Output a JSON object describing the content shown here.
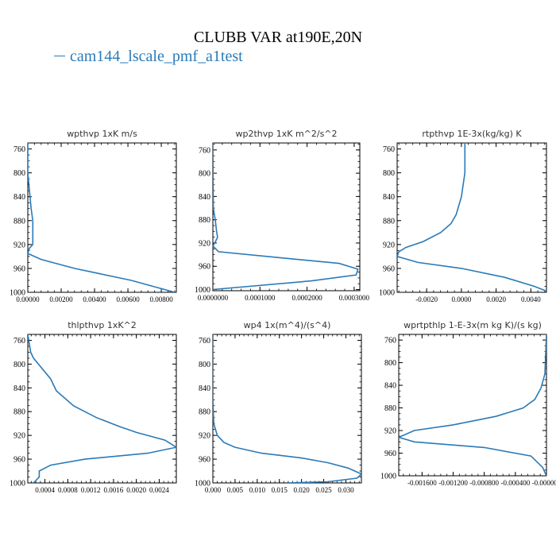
{
  "page": {
    "title": "CLUBB VAR at190E,20N",
    "legend": "cam144_lscale_pmf_a1test"
  },
  "colors": {
    "series": "#2a7ab8",
    "axes": "#000000"
  },
  "chart_data": [
    {
      "type": "line",
      "title": "wpthvp   1xK m/s",
      "xlim": [
        0,
        0.0089
      ],
      "ylim": [
        1000,
        750
      ],
      "ylabel": "",
      "xticks": [
        0,
        0.002,
        0.004,
        0.006,
        0.008
      ],
      "xticklabels": [
        "0.00000",
        "0.00200",
        "0.00400",
        "0.00600",
        "0.00800"
      ],
      "yticks": [
        760,
        800,
        840,
        880,
        920,
        960,
        1000
      ],
      "yticklabels": [
        "760",
        "800",
        "840",
        "880",
        "920",
        "960",
        "1000"
      ],
      "x": [
        0.0,
        0.0,
        0.0001,
        0.0002,
        0.0003,
        0.0003,
        0.0003,
        0.0003,
        0.0001,
        0.0,
        0.0008,
        0.0028,
        0.0062,
        0.0088
      ],
      "y": [
        750,
        800,
        830,
        860,
        880,
        900,
        912,
        920,
        926,
        935,
        945,
        960,
        980,
        1000
      ]
    },
    {
      "type": "line",
      "title": "wp2thvp   1xK m^2/s^2",
      "xlim": [
        0,
        0.000312
      ],
      "ylim": [
        1002,
        748
      ],
      "ylabel": "",
      "xticks": [
        0,
        0.0001,
        0.0002,
        0.0003
      ],
      "xticklabels": [
        "0.0000000",
        "0.0001000",
        "0.0002000",
        "0.0003000"
      ],
      "yticks": [
        760,
        800,
        840,
        880,
        920,
        960,
        1000
      ],
      "yticklabels": [
        "760",
        "800",
        "840",
        "880",
        "920",
        "960",
        "1000"
      ],
      "x": [
        0.0,
        5e-07,
        1e-06,
        5e-06,
        8e-06,
        1e-05,
        4e-06,
        0.0,
        1.2e-05,
        0.00014,
        0.000268,
        0.000308,
        0.000304,
        0.00021,
        0.0
      ],
      "y": [
        748,
        820,
        860,
        880,
        900,
        910,
        920,
        925,
        935,
        945,
        955,
        965,
        975,
        985,
        1000
      ]
    },
    {
      "type": "line",
      "title": "rtpthvp   1E-3x(kg/kg) K",
      "xlim": [
        -0.0037,
        0.0049
      ],
      "ylim": [
        1000,
        750
      ],
      "ylabel": "",
      "xticks": [
        -0.002,
        0.0,
        0.002,
        0.004
      ],
      "xticklabels": [
        "-0.0020",
        "0.0000",
        "0.0020",
        "0.0040"
      ],
      "yticks": [
        760,
        800,
        840,
        880,
        920,
        960,
        1000
      ],
      "yticklabels": [
        "760",
        "800",
        "840",
        "880",
        "920",
        "960",
        "1000"
      ],
      "x": [
        0.0002,
        0.0002,
        0.0,
        -0.0003,
        -0.0006,
        -0.0012,
        -0.0022,
        -0.0032,
        -0.0036,
        -0.0037,
        -0.0025,
        0.0,
        0.0025,
        0.0042,
        0.0049
      ],
      "y": [
        750,
        800,
        840,
        870,
        885,
        900,
        915,
        925,
        932,
        940,
        950,
        960,
        975,
        990,
        998
      ]
    },
    {
      "type": "line",
      "title": "thlpthvp   1xK^2",
      "xlim": [
        0.0001,
        0.0027
      ],
      "ylim": [
        1000,
        750
      ],
      "ylabel": "",
      "xticks": [
        0.0004,
        0.0008,
        0.0012,
        0.0016,
        0.002,
        0.0024
      ],
      "xticklabels": [
        "0.0004",
        "0.0008",
        "0.0012",
        "0.0016",
        "0.0020",
        "0.0024"
      ],
      "yticks": [
        760,
        800,
        840,
        880,
        920,
        960,
        1000
      ],
      "yticklabels": [
        "760",
        "800",
        "840",
        "880",
        "920",
        "960",
        "1000"
      ],
      "x": [
        0.0001,
        0.00015,
        0.0002,
        0.0005,
        0.0006,
        0.0009,
        0.0013,
        0.0017,
        0.002,
        0.0025,
        0.0027,
        0.0022,
        0.0011,
        0.0005,
        0.0003,
        0.0003,
        0.0002
      ],
      "y": [
        750,
        780,
        790,
        825,
        845,
        870,
        890,
        905,
        915,
        928,
        940,
        950,
        960,
        970,
        980,
        990,
        1000
      ]
    },
    {
      "type": "line",
      "title": "wp4   1x(m^4)/(s^4)",
      "xlim": [
        0,
        0.0335
      ],
      "ylim": [
        1000,
        750
      ],
      "ylabel": "",
      "xticks": [
        0,
        0.005,
        0.01,
        0.015,
        0.02,
        0.025,
        0.03
      ],
      "xticklabels": [
        "0.000",
        "0.005",
        "0.010",
        "0.015",
        "0.020",
        "0.025",
        "0.030"
      ],
      "yticks": [
        760,
        800,
        840,
        880,
        920,
        960,
        1000
      ],
      "yticklabels": [
        "760",
        "800",
        "840",
        "880",
        "920",
        "960",
        "1000"
      ],
      "x": [
        0.0,
        0.0,
        0.0002,
        0.001,
        0.0025,
        0.005,
        0.011,
        0.02,
        0.026,
        0.0305,
        0.0335,
        0.0325,
        0.026,
        0.017
      ],
      "y": [
        750,
        860,
        900,
        920,
        932,
        940,
        950,
        958,
        966,
        975,
        985,
        992,
        998,
        1000
      ]
    },
    {
      "type": "line",
      "title": "wprtpthlp   1-E-3x(m kg K)/(s kg)",
      "xlim": [
        -0.0019,
        0.0
      ],
      "ylim": [
        1000,
        750
      ],
      "ylabel": "",
      "xticks": [
        -0.0016,
        -0.0012,
        -0.0008,
        -0.0004,
        0.0
      ],
      "xticklabels": [
        "-0.001600",
        "-0.001200",
        "-0.000800",
        "-0.000400",
        "-0.000000"
      ],
      "yticks": [
        760,
        800,
        840,
        880,
        920,
        960,
        1000
      ],
      "yticklabels": [
        "760",
        "800",
        "840",
        "880",
        "920",
        "960",
        "1000"
      ],
      "x": [
        0.0,
        -2e-05,
        -7e-05,
        -0.00015,
        -0.0003,
        -0.00065,
        -0.0012,
        -0.0017,
        -0.0019,
        -0.0017,
        -0.0008,
        -0.0002,
        -5e-05,
        0.0
      ],
      "y": [
        750,
        820,
        845,
        865,
        880,
        895,
        910,
        920,
        932,
        940,
        950,
        965,
        985,
        1000
      ]
    }
  ]
}
